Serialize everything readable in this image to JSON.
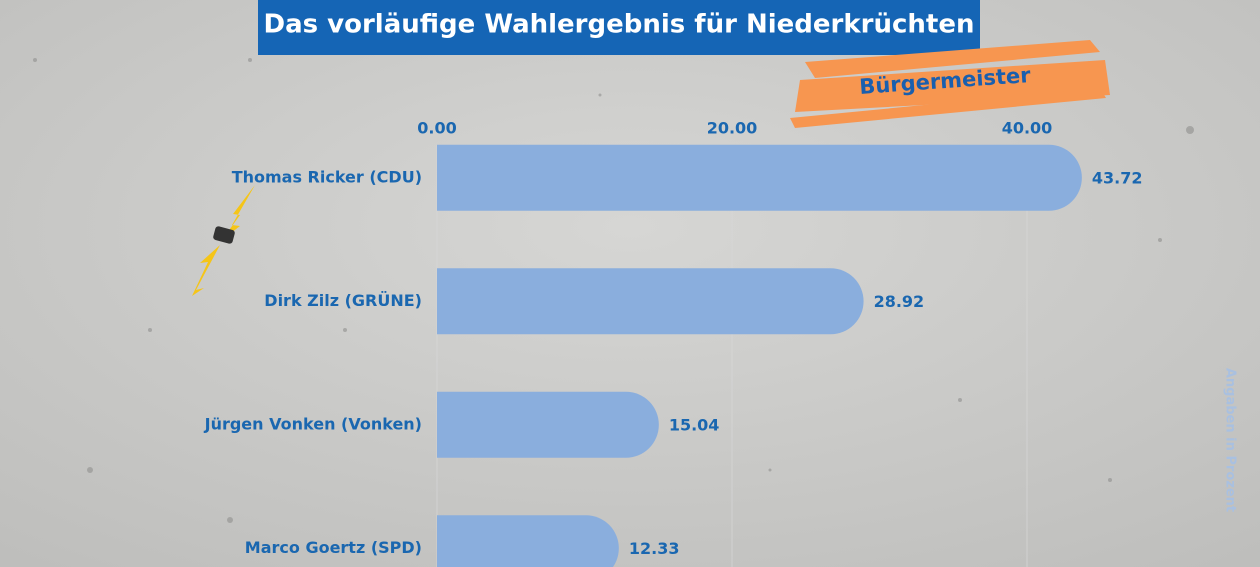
{
  "chart_data": {
    "type": "bar",
    "orientation": "horizontal",
    "title": "Das vorläufige Wahlergebnis für Niederkrüchten",
    "subtitle": "Bürgermeister",
    "note": "Angaben in Prozent",
    "categories": [
      "Thomas Ricker (CDU)",
      "Dirk Zilz (GRÜNE)",
      "Jürgen Vonken (Vonken)",
      "Marco Goertz (SPD)"
    ],
    "values": [
      43.72,
      28.92,
      15.04,
      12.33
    ],
    "color": "#8aaedd",
    "xlim": [
      0,
      55
    ],
    "xticks": [
      {
        "value": 0,
        "label": "0.00"
      },
      {
        "value": 20,
        "label": "20.00"
      },
      {
        "value": 40,
        "label": "40.00"
      }
    ],
    "grid": true
  }
}
